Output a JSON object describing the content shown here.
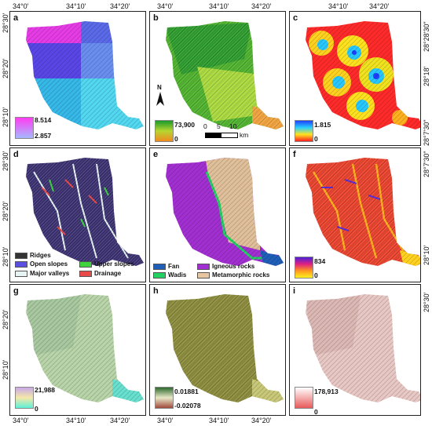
{
  "coords": {
    "top": [
      "34°0'",
      "34°10'",
      "34°20'"
    ],
    "bottom": [
      "34°0'",
      "34°10'",
      "34°20'"
    ],
    "left_top": [
      "28°30'",
      "28°20'",
      "28°10'"
    ],
    "left_mid": [
      "28°30'",
      "28°20'",
      "28°10'"
    ],
    "left_bot": [
      "28°20'",
      "28°10'"
    ],
    "right_c": [
      "28°28'30\"",
      "28°18'",
      "28°7'30\""
    ],
    "right_f": [
      "28°7'30\"",
      "28°10'"
    ],
    "right_g": [
      "28°30'"
    ]
  },
  "panels": {
    "a": {
      "letter": "a",
      "max": "8.514",
      "min": "2.857"
    },
    "b": {
      "letter": "b",
      "max": "73,900",
      "min": "0",
      "north": "N",
      "scale": [
        "0",
        "5",
        "10"
      ],
      "scale_unit": "km"
    },
    "c": {
      "letter": "c",
      "max": "1.815",
      "min": "0"
    },
    "d": {
      "letter": "d",
      "keys": [
        "Ridges",
        "Open slopes",
        "Upper slopes",
        "Major valleys",
        "Drainage"
      ]
    },
    "e": {
      "letter": "e",
      "keys": [
        "Fan",
        "Igneous rocks",
        "Wadis",
        "Metamorphic rocks"
      ]
    },
    "f": {
      "letter": "f",
      "max": "834",
      "min": "0"
    },
    "g": {
      "letter": "g",
      "max": "21,988",
      "min": "0"
    },
    "h": {
      "letter": "h",
      "max": "0.01881",
      "min": "-0.02078"
    },
    "i": {
      "letter": "i",
      "max": "178,913",
      "min": "0"
    }
  },
  "colors": {
    "d_keys": [
      "#333333",
      "#5a4fe0",
      "#3fd43f",
      "#e6f4f4",
      "#e84a4a"
    ],
    "e_keys": [
      "#1f5fb8",
      "#a22fd1",
      "#22d162",
      "#e8c7a0"
    ]
  }
}
